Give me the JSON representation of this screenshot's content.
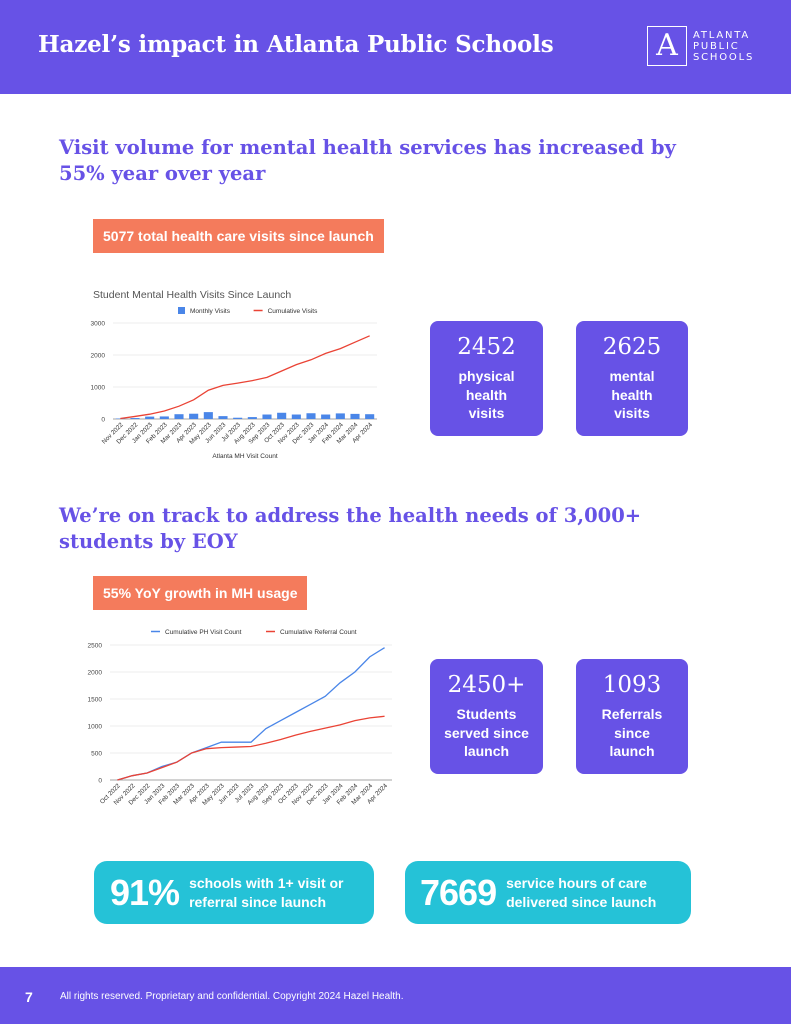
{
  "header": {
    "title": "Hazel’s impact in Atlanta Public Schools",
    "logo_mark": "A",
    "logo_lines": [
      "ATLANTA",
      "PUBLIC",
      "SCHOOLS"
    ]
  },
  "section1": {
    "heading_lines": [
      "Visit volume for mental health services has increased by",
      "55% year over year"
    ],
    "tag": "5077 total health care visits since launch",
    "cards": [
      {
        "value": "2452",
        "label_lines": [
          "physical",
          "health",
          "visits"
        ]
      },
      {
        "value": "2625",
        "label_lines": [
          "mental",
          "health",
          "visits"
        ]
      }
    ]
  },
  "section2": {
    "heading_lines": [
      "We’re on track to address the health needs of 3,000+",
      "students by EOY"
    ],
    "tag": "55% YoY growth in MH usage",
    "cards": [
      {
        "value": "2450+",
        "label_lines": [
          "Students",
          "served since",
          "launch"
        ]
      },
      {
        "value": "1093",
        "label_lines": [
          "Referrals",
          "since",
          "launch"
        ]
      }
    ]
  },
  "pills": [
    {
      "value": "91%",
      "label_lines": [
        "schools with 1+ visit or",
        "referral since launch"
      ]
    },
    {
      "value": "7669",
      "label_lines": [
        "service hours of care",
        "delivered since launch"
      ]
    }
  ],
  "footer": {
    "page_number": "7",
    "copyright": "All rights reserved. Proprietary and confidential. Copyright 2024 Hazel Health."
  },
  "colors": {
    "purple": "#6752e6",
    "coral": "#f47b5c",
    "teal": "#25c2d7",
    "bar_blue": "#4a86e8",
    "line_red": "#ea4335",
    "line_blue": "#4a86e8"
  },
  "chart_data": [
    {
      "type": "bar",
      "title": "Student Mental Health Visits Since Launch",
      "xlabel": "Atlanta MH Visit Count",
      "ylabel": "",
      "ylim": [
        0,
        3000
      ],
      "yticks": [
        0,
        1000,
        2000,
        3000
      ],
      "legend_position": "top-center",
      "categories": [
        "Nov 2022",
        "Dec 2022",
        "Jan 2023",
        "Feb 2023",
        "Mar 2023",
        "Apr 2023",
        "May 2023",
        "Jun 2023",
        "Jul 2023",
        "Aug 2023",
        "Sep 2023",
        "Oct 2023",
        "Nov 2023",
        "Dec 2023",
        "Jan 2024",
        "Feb 2024",
        "Mar 2024",
        "Apr 2024"
      ],
      "series": [
        {
          "name": "Monthly Visits",
          "kind": "bar",
          "values": [
            15,
            30,
            75,
            80,
            150,
            165,
            215,
            90,
            40,
            60,
            140,
            195,
            140,
            180,
            140,
            175,
            160,
            150
          ]
        },
        {
          "name": "Cumulative Visits",
          "kind": "line",
          "values": [
            15,
            80,
            150,
            250,
            400,
            600,
            900,
            1050,
            1120,
            1200,
            1300,
            1500,
            1700,
            1850,
            2050,
            2200,
            2400,
            2600
          ]
        }
      ]
    },
    {
      "type": "line",
      "title": "",
      "xlabel": "",
      "ylabel": "",
      "ylim": [
        0,
        2500
      ],
      "yticks": [
        0,
        500,
        1000,
        1500,
        2000,
        2500
      ],
      "legend_position": "top-center",
      "categories": [
        "Oct 2022",
        "Nov 2022",
        "Dec 2022",
        "Jan 2023",
        "Feb 2023",
        "Mar 2023",
        "Apr 2023",
        "May 2023",
        "Jun 2023",
        "Jul 2023",
        "Aug 2023",
        "Sep 2023",
        "Oct 2023",
        "Nov 2023",
        "Dec 2023",
        "Jan 2024",
        "Feb 2024",
        "Mar 2024",
        "Apr 2024"
      ],
      "series": [
        {
          "name": "Cumulative PH Visit Count",
          "values": [
            0,
            80,
            130,
            250,
            330,
            500,
            600,
            700,
            700,
            700,
            950,
            1100,
            1250,
            1400,
            1550,
            1800,
            2000,
            2280,
            2450
          ]
        },
        {
          "name": "Cumulative Referral Count",
          "values": [
            0,
            80,
            130,
            230,
            330,
            500,
            580,
            600,
            610,
            620,
            680,
            750,
            830,
            900,
            960,
            1020,
            1100,
            1150,
            1180
          ]
        }
      ]
    }
  ]
}
